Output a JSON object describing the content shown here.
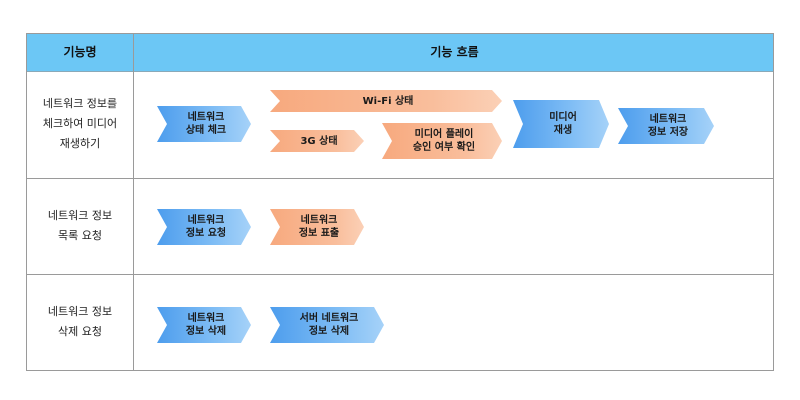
{
  "header": {
    "col1": "기능명",
    "col2": "기능 흐름"
  },
  "rows": [
    {
      "label": "네트워크 정보를\n체크하여 미디어\n재생하기",
      "steps": [
        {
          "id": "r1-s1",
          "text": "네트워크\n상태 체크",
          "color": "blue"
        },
        {
          "id": "r1-s2",
          "text": "Wi-Fi 상태",
          "color": "orange"
        },
        {
          "id": "r1-s3",
          "text": "3G 상태",
          "color": "orange"
        },
        {
          "id": "r1-s4",
          "text": "미디어 플레이\n승인 여부 확인",
          "color": "orange"
        },
        {
          "id": "r1-s5",
          "text": "미디어\n재생",
          "color": "blue"
        },
        {
          "id": "r1-s6",
          "text": "네트워크\n정보 저장",
          "color": "blue"
        }
      ]
    },
    {
      "label": "네트워크 정보\n목록 요청",
      "steps": [
        {
          "id": "r2-s1",
          "text": "네트워크\n정보 요청",
          "color": "blue"
        },
        {
          "id": "r2-s2",
          "text": "네트워크\n정보 표출",
          "color": "orange"
        }
      ]
    },
    {
      "label": "네트워크 정보\n삭제 요청",
      "steps": [
        {
          "id": "r3-s1",
          "text": "네트워크\n정보 삭제",
          "color": "blue"
        },
        {
          "id": "r3-s2",
          "text": "서버 네트워크\n정보 삭제",
          "color": "blue"
        }
      ]
    }
  ]
}
